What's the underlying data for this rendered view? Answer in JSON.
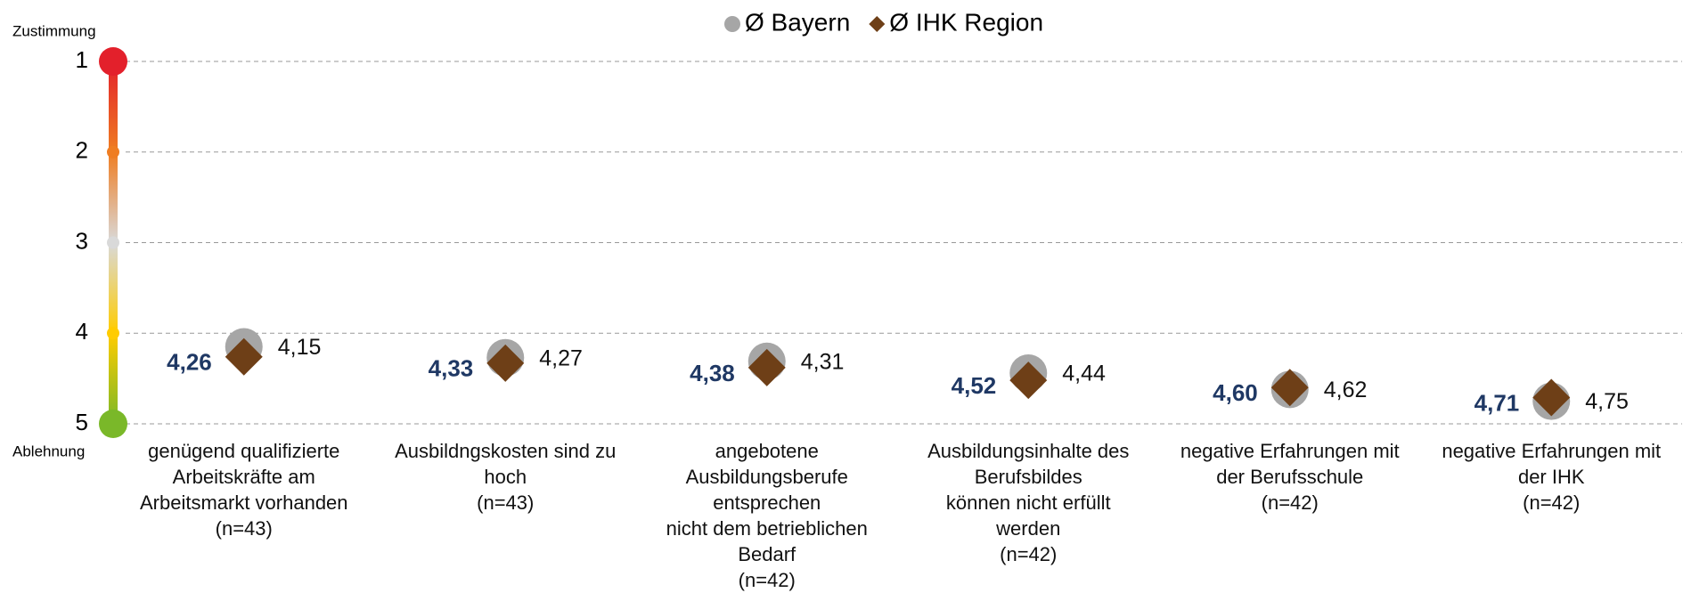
{
  "chart_data": {
    "type": "dot",
    "y_label_top": "Zustimmung",
    "y_label_bottom": "Ablehnung",
    "categories": [
      "genügend qualifizierte\nArbeitskräfte am\nArbeitsmarkt vorhanden\n(n=43)",
      "Ausbildngskosten sind zu\nhoch\n(n=43)",
      "angebotene\nAusbildungsberufe\nentsprechen\nnicht dem betrieblichen\nBedarf\n(n=42)",
      "Ausbildungsinhalte des\nBerufsbildes\nkönnen nicht erfüllt\nwerden\n(n=42)",
      "negative Erfahrungen mit\nder Berufsschule\n(n=42)",
      "negative Erfahrungen mit\nder IHK\n(n=42)"
    ],
    "series": [
      {
        "name": "Ø Bayern",
        "color": "#a6a6a6",
        "marker": "circle",
        "values": [
          4.15,
          4.27,
          4.31,
          4.44,
          4.62,
          4.75
        ],
        "value_labels": [
          "4,15",
          "4,27",
          "4,31",
          "4,44",
          "4,62",
          "4,75"
        ]
      },
      {
        "name": "Ø IHK Region",
        "color": "#6e3f17",
        "marker": "diamond",
        "values": [
          4.26,
          4.33,
          4.38,
          4.52,
          4.6,
          4.71
        ],
        "value_labels": [
          "4,26",
          "4,33",
          "4,38",
          "4,52",
          "4,60",
          "4,71"
        ]
      }
    ],
    "ylim": [
      1,
      5
    ],
    "y_inverted": true,
    "yticks": [
      1,
      2,
      3,
      4,
      5
    ],
    "grid": true
  }
}
